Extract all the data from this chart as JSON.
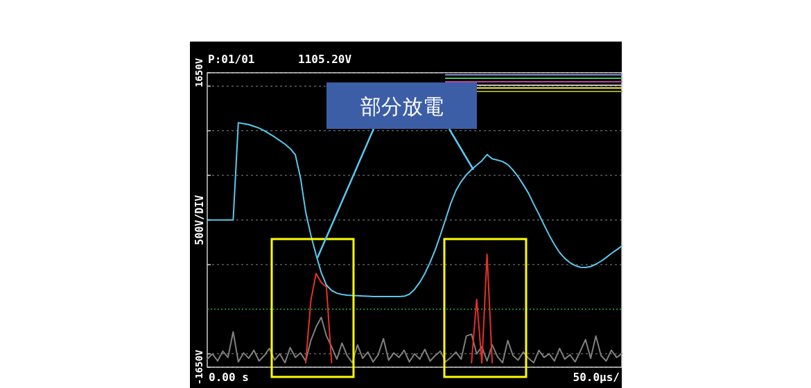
{
  "chart_data": {
    "type": "line",
    "ylabel": "500V/DIV",
    "annotations": [
      "P:01/01",
      "1105.20V",
      "0.00 s",
      "50.0µs/",
      "部分放電"
    ],
    "categories": [
      null,
      null,
      null,
      null,
      null,
      null,
      null,
      null,
      null,
      null,
      null,
      null,
      null,
      null,
      null,
      null,
      null,
      null,
      null,
      null,
      null,
      null,
      null,
      null,
      null,
      null,
      null,
      null,
      null,
      null,
      null,
      null,
      null,
      null,
      null,
      null,
      null,
      null,
      null,
      null,
      null,
      null,
      null,
      null,
      null,
      null,
      null,
      null,
      null,
      null,
      null,
      null,
      null,
      null,
      null,
      null,
      null,
      null,
      null,
      null,
      null,
      null,
      null,
      null,
      null,
      null,
      null,
      null,
      null,
      null,
      null,
      null,
      null,
      null,
      null,
      null,
      null,
      null,
      null,
      null,
      null
    ],
    "ylim": [
      -1650,
      1650
    ],
    "yticks": [
      {
        "value": 1650,
        "label": "1650V"
      },
      {
        "value": 1500,
        "label": null
      },
      {
        "value": 1000,
        "label": null
      },
      {
        "value": 500,
        "label": null
      },
      {
        "value": 0,
        "label": null
      },
      {
        "value": -500,
        "label": null
      },
      {
        "value": -1500,
        "label": null
      },
      {
        "value": -1650,
        "label": "-1650V"
      }
    ],
    "grid": "y",
    "ref_lines": [
      {
        "axis": "y",
        "value": -1000,
        "color": "#22aa44",
        "line_style": "dotted"
      }
    ],
    "series": [
      {
        "color": "#808080",
        "values": [
          -1560,
          -1500,
          -1580,
          -1470,
          -1540,
          -1254,
          -1590,
          -1490,
          -1550,
          -1460,
          -1580,
          -1520,
          -1440,
          -1570,
          -1500,
          -1600,
          -1430,
          -1540,
          -1490,
          -1580,
          -1350,
          -1200,
          -1091,
          -1300,
          -1420,
          -1560,
          -1380,
          -1520,
          -1600,
          -1400,
          -1550,
          -1480,
          -1590,
          -1510,
          -1330,
          -1570,
          -1490,
          -1540,
          -1460,
          -1590,
          -1500,
          -1560,
          -1450,
          -1580,
          -1520,
          -1470,
          -1590,
          -1540,
          -1480,
          -1560,
          -1300,
          -1280,
          -1500,
          -1420,
          -1580,
          -1400,
          -1530,
          -1600,
          -1350,
          -1520,
          -1570,
          -1480,
          -1550,
          -1600,
          -1460,
          -1540,
          -1500,
          -1580,
          -1440,
          -1560,
          -1510,
          -1590,
          -1470,
          -1340,
          -1550,
          -1300,
          -1520,
          -1580,
          -1460,
          -1540,
          -1500
        ]
      },
      {
        "color": "#e8302a",
        "values": [
          null,
          null,
          null,
          null,
          null,
          null,
          null,
          null,
          null,
          null,
          null,
          null,
          null,
          null,
          null,
          null,
          null,
          null,
          null,
          -1600,
          -900,
          -600,
          -700,
          -750,
          -1600,
          null,
          null,
          null,
          null,
          null,
          null,
          null,
          null,
          null,
          null,
          null,
          null,
          null,
          null,
          null,
          null,
          null,
          null,
          null,
          null,
          null,
          null,
          null,
          null,
          null,
          null,
          null,
          null,
          null,
          null,
          null,
          null,
          null,
          null,
          null,
          null,
          null,
          null,
          null,
          null,
          null,
          null,
          null,
          null,
          null,
          null,
          null,
          null,
          null,
          null,
          null,
          null,
          null,
          null,
          null,
          null
        ]
      },
      {
        "color": "#e8302a",
        "values": [
          null,
          null,
          null,
          null,
          null,
          null,
          null,
          null,
          null,
          null,
          null,
          null,
          null,
          null,
          null,
          null,
          null,
          null,
          null,
          null,
          null,
          null,
          null,
          null,
          null,
          null,
          null,
          null,
          null,
          null,
          null,
          null,
          null,
          null,
          null,
          null,
          null,
          null,
          null,
          null,
          null,
          null,
          null,
          null,
          null,
          null,
          null,
          null,
          null,
          null,
          null,
          -1600,
          -889,
          -1600,
          null,
          null,
          null,
          null,
          null,
          null,
          null,
          null,
          null,
          null,
          null,
          null,
          null,
          null,
          null,
          null,
          null,
          null,
          null,
          null,
          null,
          null,
          null,
          null,
          null,
          null,
          null
        ]
      },
      {
        "color": "#e8302a",
        "values": [
          null,
          null,
          null,
          null,
          null,
          null,
          null,
          null,
          null,
          null,
          null,
          null,
          null,
          null,
          null,
          null,
          null,
          null,
          null,
          null,
          null,
          null,
          null,
          null,
          null,
          null,
          null,
          null,
          null,
          null,
          null,
          null,
          null,
          null,
          null,
          null,
          null,
          null,
          null,
          null,
          null,
          null,
          null,
          null,
          null,
          null,
          null,
          null,
          null,
          null,
          null,
          null,
          null,
          -1600,
          -384,
          -1600,
          null,
          null,
          null,
          null,
          null,
          null,
          null,
          null,
          null,
          null,
          null,
          null,
          null,
          null,
          null,
          null,
          null,
          null,
          null,
          null,
          null,
          null,
          null,
          null,
          null
        ]
      },
      {
        "color": "#5bc8f0",
        "values": [
          0,
          0,
          0,
          0,
          0,
          0,
          1090,
          1080,
          1070,
          1050,
          1030,
          1000,
          965,
          930,
          890,
          850,
          800,
          730,
          470,
          90,
          -170,
          -390,
          -590,
          -730,
          -790,
          -820,
          -835,
          -843,
          -846,
          -849,
          -852,
          -855,
          -858,
          -858,
          -858,
          -858,
          -858,
          -858,
          -855,
          -833,
          -778,
          -700,
          -600,
          -476,
          -335,
          -168,
          10,
          185,
          330,
          430,
          505,
          565,
          615,
          664,
          733,
          685,
          672,
          655,
          620,
          560,
          485,
          395,
          300,
          180,
          65,
          -55,
          -170,
          -275,
          -365,
          -430,
          -478,
          -510,
          -530,
          -532,
          -522,
          -495,
          -462,
          -420,
          -375,
          -335,
          -291
        ]
      },
      {
        "color": "#7f8fd0",
        "values": [
          null,
          null,
          null,
          null,
          null,
          null,
          null,
          null,
          null,
          null,
          null,
          null,
          null,
          null,
          null,
          null,
          null,
          null,
          null,
          null,
          null,
          null,
          null,
          null,
          null,
          null,
          null,
          null,
          null,
          null,
          null,
          null,
          null,
          null,
          null,
          null,
          null,
          null,
          null,
          null,
          null,
          null,
          null,
          null,
          null,
          null,
          1627,
          1627,
          1627,
          1627,
          1627,
          1627,
          1627,
          1627,
          1627,
          1627,
          1627,
          1627,
          1627,
          1627,
          1627,
          1627,
          1627,
          1627,
          1627,
          1627,
          1627,
          1627,
          1627,
          1627,
          1627,
          1627,
          1627,
          1627,
          1627,
          1627,
          1627,
          1627,
          1627,
          1627,
          1627
        ]
      },
      {
        "color": "#4fc060",
        "values": [
          null,
          null,
          null,
          null,
          null,
          null,
          null,
          null,
          null,
          null,
          null,
          null,
          null,
          null,
          null,
          null,
          null,
          null,
          null,
          null,
          null,
          null,
          null,
          null,
          null,
          null,
          null,
          null,
          null,
          null,
          null,
          null,
          null,
          null,
          null,
          null,
          null,
          null,
          null,
          null,
          null,
          null,
          null,
          null,
          null,
          null,
          1588,
          1588,
          1588,
          1588,
          1588,
          1588,
          1588,
          1588,
          1588,
          1588,
          1588,
          1588,
          1588,
          1588,
          1588,
          1588,
          1588,
          1588,
          1588,
          1588,
          1588,
          1588,
          1588,
          1588,
          1588,
          1588,
          1588,
          1588,
          1588,
          1588,
          1588,
          1588,
          1588,
          1588,
          1588
        ]
      },
      {
        "color": "#c040a0",
        "values": [
          null,
          null,
          null,
          null,
          null,
          null,
          null,
          null,
          null,
          null,
          null,
          null,
          null,
          null,
          null,
          null,
          null,
          null,
          null,
          null,
          null,
          null,
          null,
          null,
          null,
          null,
          null,
          null,
          null,
          null,
          null,
          null,
          null,
          null,
          null,
          null,
          null,
          null,
          null,
          null,
          null,
          null,
          null,
          null,
          null,
          null,
          1549,
          1549,
          1549,
          1549,
          1549,
          1549,
          1549,
          1549,
          1549,
          1549,
          1549,
          1549,
          1549,
          1549,
          1549,
          1549,
          1549,
          1549,
          1549,
          1549,
          1549,
          1549,
          1549,
          1549,
          1549,
          1549,
          1549,
          1549,
          1549,
          1549,
          1549,
          1549,
          1549,
          1549,
          1549
        ]
      },
      {
        "color": "#c0c0c0",
        "values": [
          null,
          null,
          null,
          null,
          null,
          null,
          null,
          null,
          null,
          null,
          null,
          null,
          null,
          null,
          null,
          null,
          null,
          null,
          null,
          null,
          null,
          null,
          null,
          null,
          null,
          null,
          null,
          null,
          null,
          null,
          null,
          null,
          null,
          null,
          null,
          null,
          null,
          null,
          null,
          null,
          null,
          null,
          null,
          null,
          null,
          null,
          null,
          null,
          null,
          null,
          null,
          null,
          1510,
          1510,
          1510,
          1510,
          1510,
          1510,
          1510,
          1510,
          1510,
          1510,
          1510,
          1510,
          1510,
          1510,
          1510,
          1510,
          1510,
          1510,
          1510,
          1510,
          1510,
          1510,
          1510,
          1510,
          1510,
          1510,
          1510,
          1510,
          1510
        ]
      },
      {
        "color": "#f0f040",
        "values": [
          null,
          null,
          null,
          null,
          null,
          null,
          null,
          null,
          null,
          null,
          null,
          null,
          null,
          null,
          null,
          null,
          null,
          null,
          null,
          null,
          null,
          null,
          null,
          null,
          null,
          null,
          null,
          null,
          null,
          null,
          null,
          null,
          null,
          null,
          null,
          null,
          null,
          null,
          null,
          null,
          null,
          null,
          null,
          null,
          null,
          null,
          null,
          null,
          null,
          null,
          null,
          null,
          1479,
          1479,
          1479,
          1479,
          1479,
          1479,
          1479,
          1479,
          1479,
          1479,
          1479,
          1479,
          1479,
          1479,
          1479,
          1479,
          1479,
          1479,
          1479,
          1479,
          1479,
          1479,
          1479,
          1479,
          1479,
          1479,
          1479,
          1479,
          1479
        ]
      },
      {
        "color": "#a0a020",
        "values": [
          null,
          null,
          null,
          null,
          null,
          null,
          null,
          null,
          null,
          null,
          null,
          null,
          null,
          null,
          null,
          null,
          null,
          null,
          null,
          null,
          null,
          null,
          null,
          null,
          null,
          null,
          null,
          null,
          null,
          null,
          null,
          null,
          null,
          null,
          null,
          null,
          null,
          null,
          null,
          null,
          null,
          null,
          null,
          null,
          null,
          null,
          null,
          null,
          null,
          null,
          null,
          null,
          1440,
          1440,
          1440,
          1440,
          1440,
          1440,
          1440,
          1440,
          1440,
          1440,
          1440,
          1440,
          1440,
          1440,
          1440,
          1440,
          1440,
          1440,
          1440,
          1440,
          1440,
          1440,
          1440,
          1440,
          1440,
          1440,
          1440,
          1440,
          1440
        ]
      }
    ]
  }
}
